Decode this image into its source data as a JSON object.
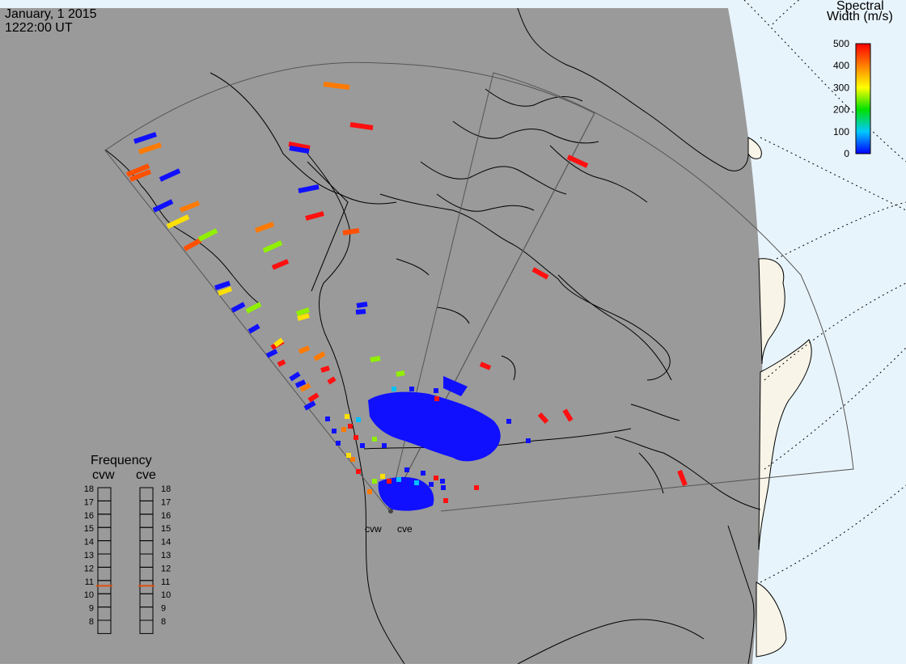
{
  "header": {
    "date": "January, 1 2015",
    "time": "1222:00 UT"
  },
  "colorbar": {
    "title_line1": "Spectral",
    "title_line2": "Width (m/s)",
    "ticks": [
      "500",
      "400",
      "300",
      "200",
      "100",
      "0"
    ],
    "gradient": [
      "#0000ff",
      "#00c8ff",
      "#00e000",
      "#ffff00",
      "#ff8000",
      "#ff0000"
    ]
  },
  "stations": {
    "west": "cvw",
    "east": "cve"
  },
  "frequency": {
    "title": "Frequency",
    "left_label": "cvw",
    "right_label": "cve",
    "ticks": [
      "18",
      "17",
      "16",
      "15",
      "14",
      "13",
      "12",
      "11",
      "10",
      "9",
      "8"
    ],
    "marker_color": "#e05010",
    "cvw_value_mhz": 10.6,
    "cve_value_mhz": 10.6
  },
  "colors": {
    "ocean": "#e8f4fc",
    "land_sunlit": "#f8f4e8",
    "night_gray": "#9a9a9a",
    "coast": "#000000",
    "fov": "#555555",
    "grid": "#000000"
  }
}
